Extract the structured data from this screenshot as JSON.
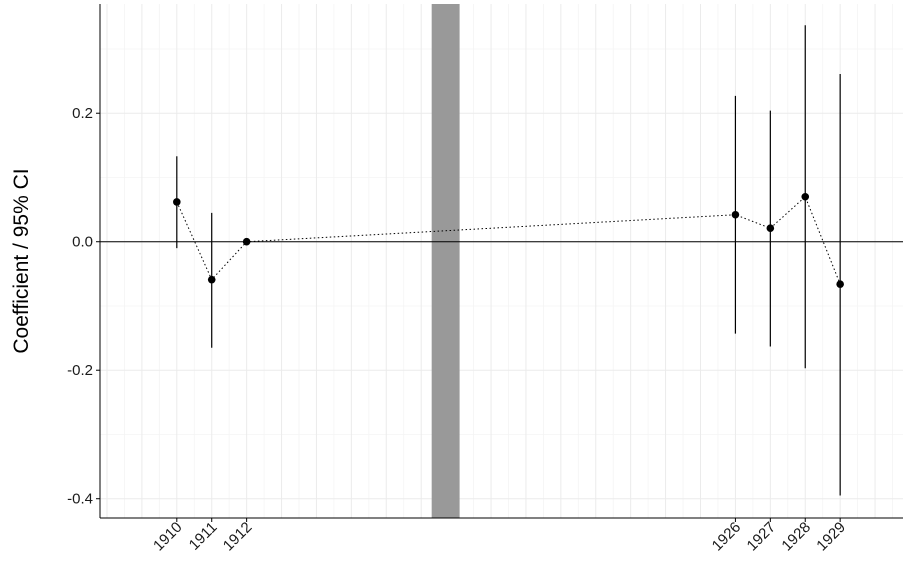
{
  "chart_data": {
    "type": "scatter",
    "ylabel": "Coefficient / 95% CI",
    "xlabel": "",
    "x_tick_labels": [
      "1910",
      "1911",
      "1912",
      "1926",
      "1927",
      "1928",
      "1929"
    ],
    "y_tick_labels": [
      "0.2",
      "0.0",
      "-0.2",
      "-0.4"
    ],
    "y_ticks": [
      0.2,
      0.0,
      -0.2,
      -0.4
    ],
    "xlim": [
      1907.8,
      1930.8
    ],
    "ylim": [
      -0.43,
      0.37
    ],
    "reference_line_y": 0,
    "shaded_band": {
      "x_start": 1917.3,
      "x_end": 1918.1,
      "color": "#999999"
    },
    "connect_points": true,
    "grid": true,
    "points": [
      {
        "x": 1910,
        "y": 0.062,
        "lower": -0.01,
        "upper": 0.133
      },
      {
        "x": 1911,
        "y": -0.059,
        "lower": -0.165,
        "upper": 0.045
      },
      {
        "x": 1912,
        "y": 0.0,
        "lower": 0.0,
        "upper": 0.0
      },
      {
        "x": 1926,
        "y": 0.042,
        "lower": -0.143,
        "upper": 0.227
      },
      {
        "x": 1927,
        "y": 0.021,
        "lower": -0.163,
        "upper": 0.204
      },
      {
        "x": 1928,
        "y": 0.07,
        "lower": -0.197,
        "upper": 0.337
      },
      {
        "x": 1929,
        "y": -0.066,
        "lower": -0.395,
        "upper": 0.261
      }
    ]
  }
}
